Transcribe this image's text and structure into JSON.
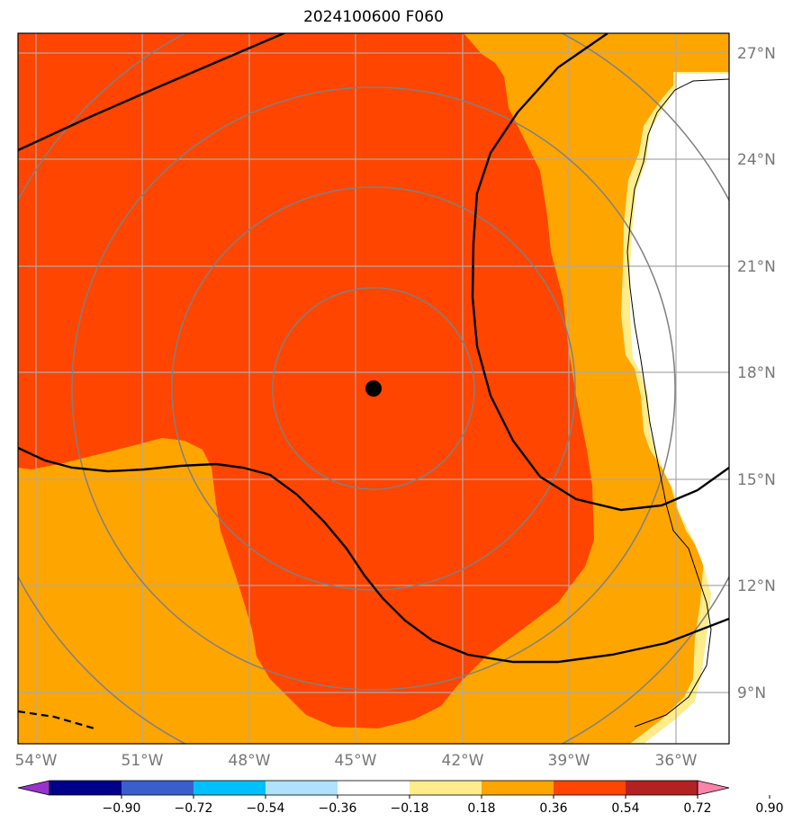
{
  "title": "2024100600 F060",
  "center_marker": {
    "lat": 17.5,
    "lon": -44.5
  },
  "lat_ticks": [
    {
      "value": 27,
      "label": "27°N"
    },
    {
      "value": 24,
      "label": "24°N"
    },
    {
      "value": 21,
      "label": "21°N"
    },
    {
      "value": 18,
      "label": "18°N"
    },
    {
      "value": 15,
      "label": "15°N"
    },
    {
      "value": 12,
      "label": "12°N"
    },
    {
      "value": 9,
      "label": "9°N"
    }
  ],
  "lon_ticks": [
    {
      "value": -54,
      "label": "54°W"
    },
    {
      "value": -51,
      "label": "51°W"
    },
    {
      "value": -48,
      "label": "48°W"
    },
    {
      "value": -45,
      "label": "45°W"
    },
    {
      "value": -42,
      "label": "42°W"
    },
    {
      "value": -39,
      "label": "39°W"
    },
    {
      "value": -36,
      "label": "36°W"
    }
  ],
  "colorbar": {
    "colors": [
      "#9932cc",
      "#00008b",
      "#3a5fcd",
      "#00bfff",
      "#b0e2ff",
      "#ffffff",
      "#ffec8b",
      "#ffa500",
      "#ff4500",
      "#b22222",
      "#ff82ab"
    ],
    "labels": [
      "−0.90",
      "−0.72",
      "−0.54",
      "−0.36",
      "−0.18",
      "0.18",
      "0.36",
      "0.54",
      "0.72",
      "0.90"
    ]
  },
  "colors": {
    "red_orange": "#ff4500",
    "orange": "#ffa500",
    "light_yellow": "#ffec8b",
    "grid": "#999999",
    "range_rings": "#808080"
  }
}
